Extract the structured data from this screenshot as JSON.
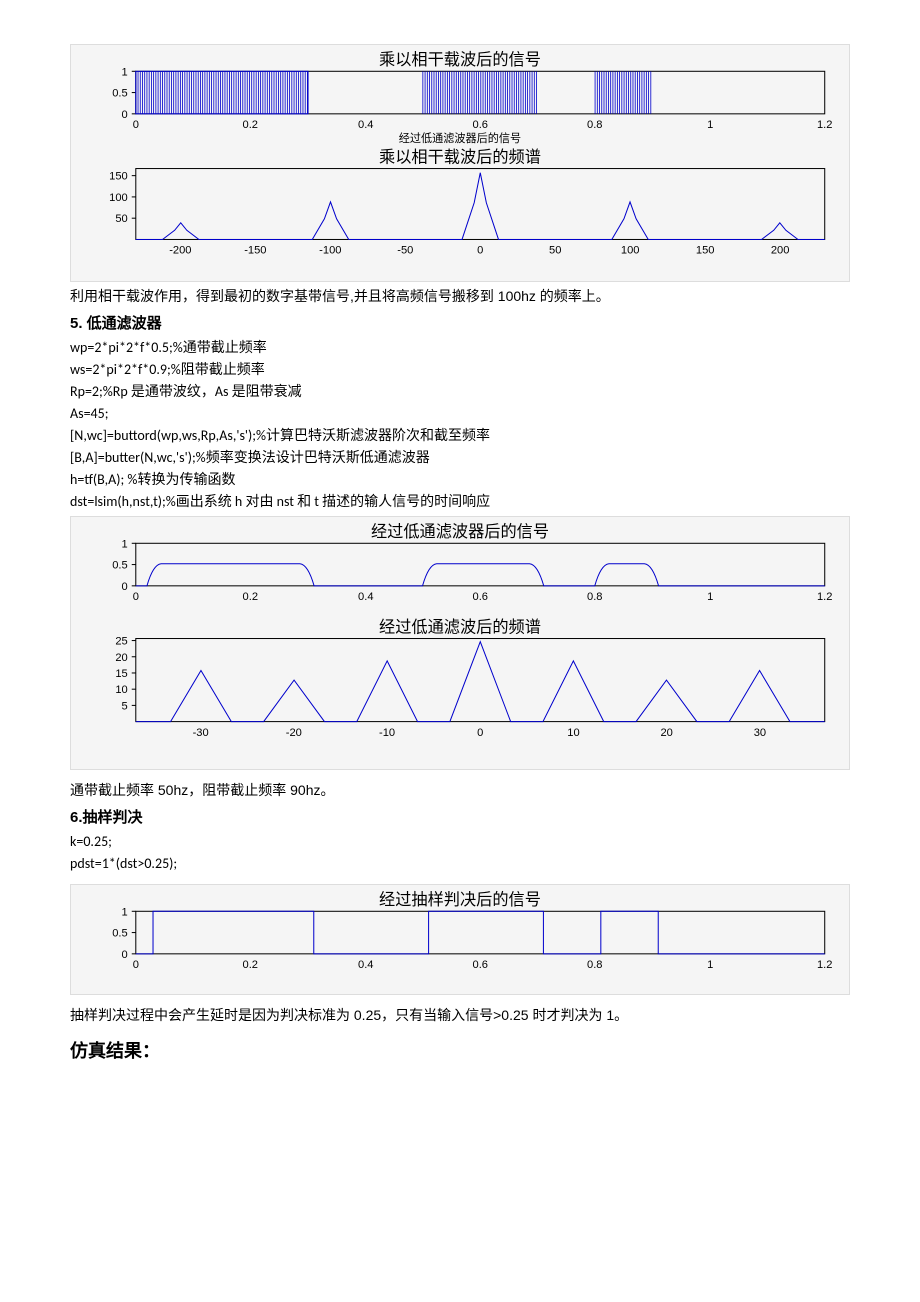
{
  "fig1": {
    "panel1": {
      "title": "乘以相干载波后的信号",
      "yticks": [
        "0",
        "0.5",
        "1"
      ],
      "xticks": [
        "0",
        "0.2",
        "0.4",
        "0.6",
        "0.8",
        "1",
        "1.2"
      ],
      "subtitle_below": "经过低通滤波器后的信号",
      "ylim": [
        0,
        1
      ],
      "xlim": [
        0,
        1.2
      ],
      "bands": [
        [
          0.0,
          0.3
        ],
        [
          0.5,
          0.7
        ],
        [
          0.8,
          0.9
        ]
      ],
      "line_color": "#0000cc",
      "bg_color": "#ffffff",
      "axis_color": "#000000"
    },
    "panel2": {
      "title": "乘以相干载波后的频谱",
      "yticks": [
        "50",
        "100",
        "150"
      ],
      "xticks": [
        "-200",
        "-150",
        "-100",
        "-50",
        "0",
        "50",
        "100",
        "150",
        "200"
      ],
      "ylim": [
        0,
        170
      ],
      "xlim": [
        -230,
        230
      ],
      "peaks_x": [
        -200,
        -100,
        0,
        100,
        200
      ],
      "peaks_h": [
        40,
        90,
        160,
        90,
        40
      ],
      "line_color": "#0000cc",
      "bg_color": "#ffffff",
      "axis_color": "#000000"
    }
  },
  "text_after_fig1": "利用相干载波作用，得到最初的数字基带信号,并且将高频信号搬移到 100hz 的频率上。",
  "section5": {
    "heading": "5. 低通滤波器",
    "lines": [
      "wp=2*pi*2*f*0.5;%通带截止频率",
      "ws=2*pi*2*f*0.9;%阻带截止频率",
      "Rp=2;%Rp 是通带波纹，As 是阻带衰减",
      "As=45;",
      "[N,wc]=buttord(wp,ws,Rp,As,'s');%计算巴特沃斯滤波器阶次和截至频率",
      "[B,A]=butter(N,wc,'s');%频率变换法设计巴特沃斯低通滤波器",
      "h=tf(B,A);   %转换为传输函数",
      "dst=lsim(h,nst,t);%画出系统 h 对由 nst 和 t 描述的输人信号的时间响应"
    ]
  },
  "fig2": {
    "panel1": {
      "title": "经过低通滤波器后的信号",
      "yticks": [
        "0",
        "0.5",
        "1"
      ],
      "xticks": [
        "0",
        "0.2",
        "0.4",
        "0.6",
        "0.8",
        "1",
        "1.2"
      ],
      "ylim": [
        0,
        1
      ],
      "xlim": [
        0,
        1.2
      ],
      "line_color": "#0000cc",
      "bg_color": "#ffffff"
    },
    "panel2": {
      "title": "经过低通滤波后的频谱",
      "yticks": [
        "5",
        "10",
        "15",
        "20",
        "25"
      ],
      "xticks": [
        "-30",
        "-20",
        "-10",
        "0",
        "10",
        "20",
        "30"
      ],
      "ylim": [
        0,
        26
      ],
      "xlim": [
        -37,
        37
      ],
      "peaks_x": [
        -30,
        -20,
        -10,
        0,
        10,
        20,
        30
      ],
      "peaks_h": [
        16,
        13,
        19,
        25,
        19,
        13,
        16
      ],
      "line_color": "#0000cc",
      "bg_color": "#ffffff"
    }
  },
  "text_after_fig2": "通带截止频率 50hz，阻带截止频率 90hz。",
  "section6": {
    "heading": "6.抽样判决",
    "lines": [
      "k=0.25;",
      "pdst=1*(dst>0.25);"
    ]
  },
  "fig3": {
    "panel1": {
      "title": "经过抽样判决后的信号",
      "yticks": [
        "0",
        "0.5",
        "1"
      ],
      "xticks": [
        "0",
        "0.2",
        "0.4",
        "0.6",
        "0.8",
        "1",
        "1.2"
      ],
      "ylim": [
        0,
        1
      ],
      "xlim": [
        0,
        1.2
      ],
      "steps": [
        [
          0.03,
          0.31
        ],
        [
          0.51,
          0.71
        ],
        [
          0.81,
          0.91
        ]
      ],
      "line_color": "#0000cc",
      "bg_color": "#ffffff"
    }
  },
  "text_after_fig3": "抽样判决过程中会产生延时是因为判决标准为 0.25，只有当输入信号>0.25 时才判决为 1。",
  "result_heading": "仿真结果："
}
